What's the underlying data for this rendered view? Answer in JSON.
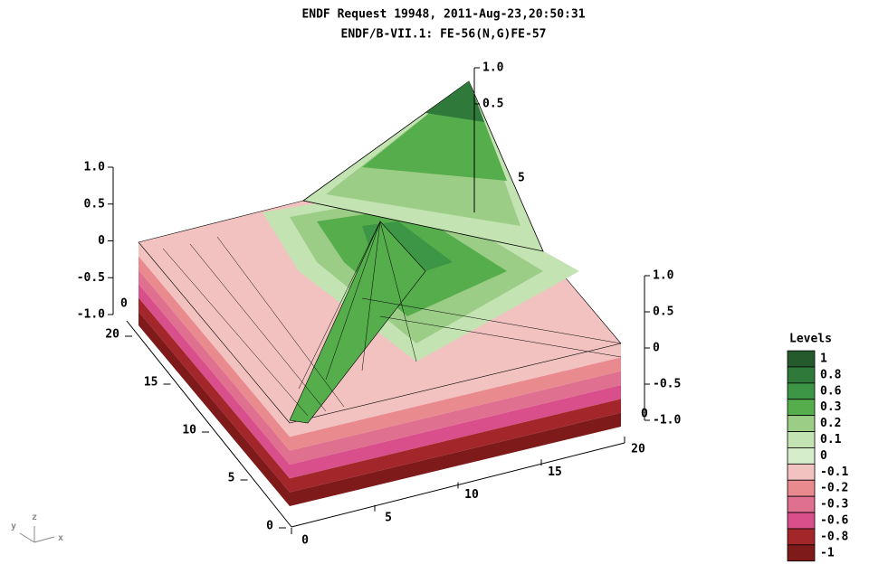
{
  "chart_data": {
    "type": "surface3d",
    "title": "ENDF Request 19948, 2011-Aug-23,20:50:31",
    "subtitle": "ENDF/B-VII.1: FE-56(N,G)FE-57",
    "xticks": [
      0,
      5,
      10,
      15,
      20
    ],
    "yticks": [
      0,
      5,
      10,
      15,
      20
    ],
    "zticks": [
      {
        "value": 1,
        "label": "1.0"
      },
      {
        "value": 0.5,
        "label": "0.5"
      },
      0,
      {
        "value": -0.5,
        "label": "-0.5"
      },
      {
        "value": -1,
        "label": "-1.0"
      }
    ],
    "zlim": [
      -1,
      1
    ],
    "legend_title": "Levels",
    "levels": [
      1,
      0.8,
      0.6,
      0.3,
      0.2,
      0.1,
      0,
      -0.1,
      -0.2,
      -0.3,
      -0.6,
      -0.8,
      -1
    ],
    "level_colors": [
      "#245a2c",
      "#2f7a3a",
      "#3d9645",
      "#55ad4c",
      "#9ccd86",
      "#c3e3b2",
      "#d6edcc",
      "#f2c2c0",
      "#e98a8e",
      "#e0708f",
      "#d94f8c",
      "#a3262a",
      "#7e1a1a"
    ],
    "axis_triad": [
      "y",
      "z",
      "x"
    ]
  }
}
